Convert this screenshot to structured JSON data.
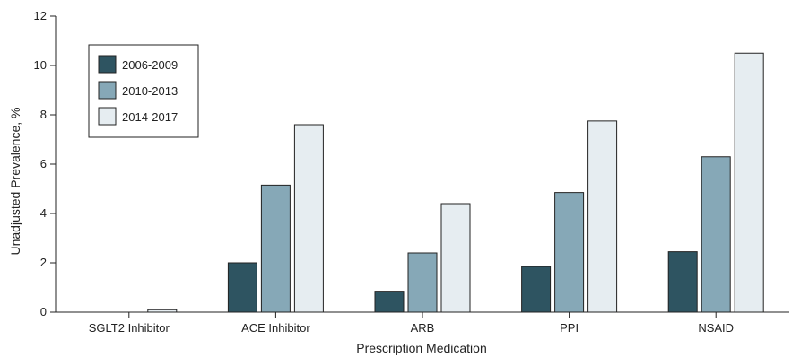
{
  "chart_data": {
    "type": "bar",
    "xlabel": "Prescription Medication",
    "ylabel": "Unadjusted Prevalence, %",
    "ylim": [
      0,
      12
    ],
    "yticks": [
      0,
      2,
      4,
      6,
      8,
      10,
      12
    ],
    "grid": false,
    "legend_position": "top-left",
    "categories": [
      "SGLT2 Inhibitor",
      "ACE Inhibitor",
      "ARB",
      "PPI",
      "NSAID"
    ],
    "series": [
      {
        "name": "2006-2009",
        "color": "#2e5461",
        "values": [
          0,
          2.0,
          0.85,
          1.85,
          2.45
        ]
      },
      {
        "name": "2010-2013",
        "color": "#86a8b7",
        "values": [
          0,
          5.15,
          2.4,
          4.85,
          6.3
        ]
      },
      {
        "name": "2014-2017",
        "color": "#e6edf1",
        "values": [
          0.1,
          7.6,
          4.4,
          7.75,
          10.5
        ]
      }
    ]
  }
}
